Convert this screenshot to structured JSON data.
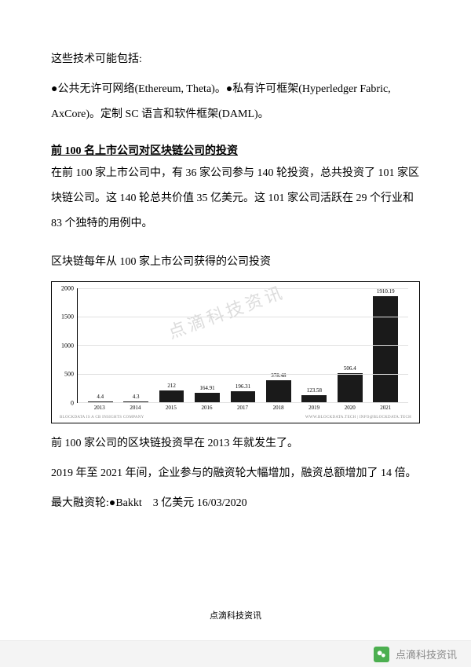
{
  "intro1": "这些技术可能包括:",
  "intro2": "●公共无许可网络(Ethereum, Theta)。●私有许可框架(Hyperledger Fabric, AxCore)。定制 SC 语言和软件框架(DAML)。",
  "section_title": "前 100 名上市公司对区块链公司的投资",
  "section_body": "在前 100 家上市公司中，有 36 家公司参与 140 轮投资，总共投资了 101 家区块链公司。这 140 轮总共价值 35 亿美元。这 101 家公司活跃在 29 个行业和 83 个独特的用例中。",
  "chart_caption": "区块链每年从 100 家上市公司获得的公司投资",
  "chart": {
    "type": "bar",
    "categories": [
      "2013",
      "2014",
      "2015",
      "2016",
      "2017",
      "2018",
      "2019",
      "2020",
      "2021"
    ],
    "values": [
      4.4,
      4.3,
      212,
      164.91,
      196.31,
      378.48,
      123.58,
      506.4,
      1910.19
    ],
    "value_labels": [
      "4.4",
      "4.3",
      "212",
      "164.91",
      "196.31",
      "378.48",
      "123.58",
      "506.4",
      "1910.19"
    ],
    "ymax": 2000,
    "yticks": [
      0,
      500,
      1000,
      1500,
      2000
    ],
    "bar_color": "#1a1a1a",
    "grid_color": "#e0e0e0",
    "background_color": "#ffffff",
    "border_color": "#000000",
    "font_size_axis": 7,
    "footer_left": "BLOCKDATA IS A CB INSIGHTS COMPANY",
    "footer_right": "WWW.BLOCKDATA.TECH | INFO@BLOCKDATA.TECH"
  },
  "after1": "前 100 家公司的区块链投资早在 2013 年就发生了。",
  "after2": "2019 年至 2021 年间，企业参与的融资轮大幅增加，融资总额增加了 14 倍。",
  "after3": "最大融资轮:●Bakkt　3 亿美元 16/03/2020",
  "footer": "点滴科技资讯",
  "wechat_label": "点滴科技资讯",
  "watermark_text": "点滴科技资讯"
}
